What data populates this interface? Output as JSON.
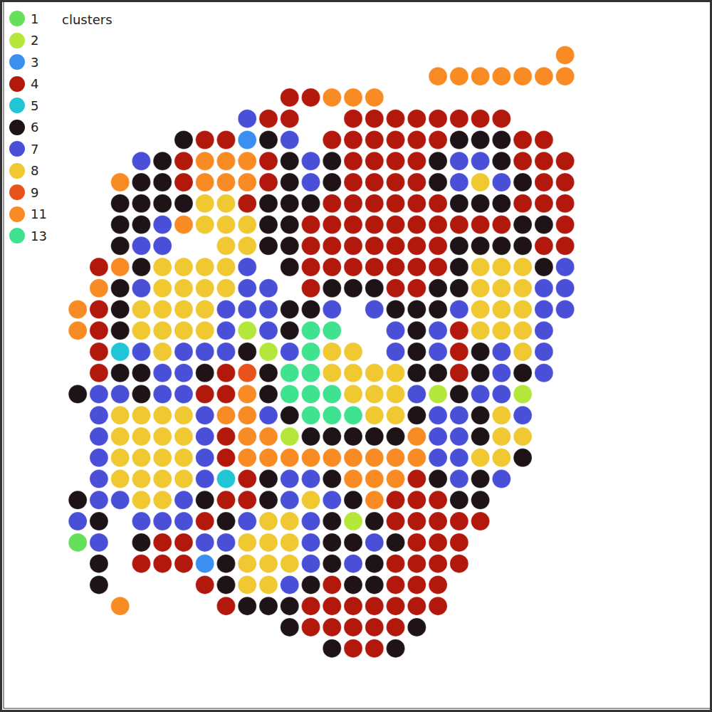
{
  "chart_data": {
    "type": "scatter",
    "legend_title": "clusters",
    "legend": "upper left",
    "tick_labels": false,
    "xlim": [
      0,
      1000
    ],
    "ylim": [
      0,
      1000
    ],
    "series": [
      {
        "name": "1",
        "color": "#66e05a"
      },
      {
        "name": "2",
        "color": "#b5e63a"
      },
      {
        "name": "3",
        "color": "#3a8ff0"
      },
      {
        "name": "4",
        "color": "#b3180c"
      },
      {
        "name": "5",
        "color": "#22c5d6"
      },
      {
        "name": "6",
        "color": "#1e1418"
      },
      {
        "name": "7",
        "color": "#4a4fd8"
      },
      {
        "name": "8",
        "color": "#f0c832"
      },
      {
        "name": "9",
        "color": "#e8521c"
      },
      {
        "name": "11",
        "color": "#f98b24"
      },
      {
        "name": "13",
        "color": "#3ee28f"
      }
    ],
    "x": [
      105,
      135,
      165,
      195,
      225,
      255,
      285,
      315,
      345,
      375,
      405,
      435,
      465,
      495,
      525,
      555,
      585,
      615,
      645,
      675,
      705,
      735,
      765,
      795
    ],
    "y": [
      75,
      105,
      135,
      165,
      195,
      225,
      255,
      285,
      315,
      345,
      375,
      405,
      435,
      465,
      495,
      525,
      555,
      585,
      615,
      645,
      675,
      705,
      735,
      765,
      795,
      825,
      855,
      885,
      915
    ],
    "cells": [
      [
        null,
        null,
        null,
        null,
        null,
        null,
        null,
        null,
        null,
        null,
        null,
        null,
        null,
        null,
        null,
        null,
        null,
        null,
        null,
        null,
        null,
        null,
        null,
        11
      ],
      [
        null,
        null,
        null,
        null,
        null,
        null,
        null,
        null,
        null,
        null,
        null,
        null,
        null,
        null,
        null,
        null,
        null,
        11,
        11,
        11,
        11,
        11,
        11,
        11
      ],
      [
        null,
        null,
        null,
        null,
        null,
        null,
        null,
        null,
        null,
        null,
        4,
        4,
        11,
        11,
        11,
        null,
        null,
        null,
        null,
        null,
        null,
        null,
        null,
        null
      ],
      [
        null,
        null,
        null,
        null,
        null,
        null,
        null,
        null,
        7,
        4,
        4,
        null,
        null,
        4,
        4,
        4,
        4,
        4,
        4,
        4,
        4,
        null,
        null,
        null
      ],
      [
        null,
        null,
        null,
        null,
        null,
        6,
        4,
        4,
        3,
        6,
        7,
        null,
        4,
        4,
        4,
        4,
        4,
        4,
        6,
        6,
        6,
        4,
        4,
        null
      ],
      [
        null,
        null,
        null,
        7,
        6,
        4,
        11,
        11,
        11,
        4,
        6,
        7,
        6,
        4,
        4,
        4,
        4,
        6,
        7,
        7,
        6,
        4,
        4,
        4
      ],
      [
        null,
        null,
        11,
        6,
        6,
        4,
        11,
        11,
        11,
        4,
        6,
        7,
        6,
        4,
        4,
        4,
        4,
        6,
        7,
        8,
        7,
        6,
        4,
        4
      ],
      [
        null,
        null,
        6,
        6,
        6,
        6,
        8,
        8,
        4,
        6,
        6,
        6,
        4,
        4,
        4,
        4,
        4,
        4,
        6,
        6,
        6,
        4,
        4,
        4
      ],
      [
        null,
        null,
        6,
        6,
        7,
        11,
        8,
        8,
        8,
        6,
        6,
        4,
        4,
        4,
        4,
        4,
        4,
        4,
        4,
        4,
        4,
        6,
        6,
        4
      ],
      [
        null,
        null,
        6,
        7,
        7,
        null,
        null,
        8,
        8,
        6,
        6,
        4,
        4,
        4,
        4,
        4,
        4,
        4,
        6,
        6,
        6,
        6,
        4,
        4
      ],
      [
        null,
        4,
        11,
        6,
        8,
        8,
        8,
        8,
        7,
        null,
        6,
        4,
        4,
        4,
        4,
        4,
        4,
        4,
        6,
        8,
        8,
        8,
        6,
        7
      ],
      [
        null,
        11,
        6,
        7,
        8,
        8,
        8,
        8,
        7,
        7,
        null,
        4,
        6,
        6,
        6,
        4,
        4,
        6,
        6,
        8,
        8,
        8,
        7,
        7
      ],
      [
        11,
        4,
        6,
        8,
        8,
        8,
        8,
        7,
        7,
        7,
        6,
        6,
        7,
        null,
        7,
        6,
        6,
        6,
        7,
        8,
        8,
        8,
        7,
        7
      ],
      [
        11,
        4,
        6,
        8,
        8,
        8,
        8,
        7,
        2,
        7,
        6,
        13,
        13,
        null,
        null,
        7,
        6,
        7,
        4,
        8,
        8,
        8,
        7,
        null
      ],
      [
        null,
        4,
        5,
        7,
        8,
        7,
        7,
        7,
        6,
        2,
        7,
        13,
        8,
        8,
        null,
        7,
        6,
        7,
        4,
        6,
        7,
        8,
        7,
        null
      ],
      [
        null,
        4,
        6,
        6,
        7,
        7,
        6,
        4,
        9,
        6,
        13,
        13,
        8,
        8,
        8,
        8,
        6,
        6,
        4,
        6,
        7,
        6,
        7,
        null
      ],
      [
        6,
        7,
        7,
        6,
        7,
        7,
        4,
        4,
        11,
        6,
        13,
        13,
        13,
        8,
        8,
        8,
        7,
        2,
        6,
        7,
        7,
        2,
        null,
        null
      ],
      [
        null,
        7,
        8,
        8,
        8,
        8,
        7,
        11,
        11,
        7,
        6,
        13,
        13,
        13,
        8,
        8,
        6,
        7,
        7,
        6,
        8,
        7,
        null,
        null
      ],
      [
        null,
        7,
        8,
        8,
        8,
        8,
        7,
        4,
        11,
        11,
        2,
        6,
        6,
        6,
        6,
        6,
        11,
        7,
        7,
        6,
        8,
        8,
        null,
        null
      ],
      [
        null,
        7,
        8,
        8,
        8,
        8,
        7,
        4,
        11,
        11,
        11,
        11,
        11,
        11,
        11,
        11,
        11,
        7,
        7,
        8,
        8,
        6,
        null,
        null
      ],
      [
        null,
        7,
        8,
        8,
        8,
        8,
        7,
        5,
        4,
        6,
        7,
        7,
        6,
        11,
        11,
        11,
        4,
        6,
        7,
        6,
        7,
        null,
        null,
        null
      ],
      [
        6,
        7,
        7,
        8,
        8,
        7,
        6,
        4,
        4,
        6,
        7,
        8,
        7,
        6,
        11,
        4,
        4,
        4,
        6,
        6,
        null,
        null,
        null,
        null
      ],
      [
        7,
        6,
        null,
        7,
        7,
        7,
        4,
        6,
        7,
        8,
        8,
        7,
        6,
        2,
        6,
        4,
        4,
        4,
        4,
        4,
        null,
        null,
        null,
        null
      ],
      [
        1,
        7,
        null,
        6,
        4,
        4,
        7,
        7,
        8,
        8,
        8,
        7,
        6,
        6,
        7,
        6,
        4,
        4,
        4,
        null,
        null,
        null,
        null,
        null
      ],
      [
        null,
        6,
        null,
        4,
        4,
        4,
        3,
        6,
        8,
        8,
        8,
        7,
        6,
        7,
        6,
        4,
        4,
        4,
        4,
        null,
        null,
        null,
        null,
        null
      ],
      [
        null,
        6,
        null,
        null,
        null,
        null,
        4,
        6,
        8,
        8,
        7,
        6,
        4,
        6,
        6,
        4,
        4,
        4,
        null,
        null,
        null,
        null,
        null,
        null
      ],
      [
        null,
        null,
        11,
        null,
        null,
        null,
        null,
        4,
        6,
        6,
        6,
        4,
        4,
        4,
        4,
        4,
        4,
        4,
        null,
        null,
        null,
        null,
        null,
        null
      ],
      [
        null,
        null,
        null,
        null,
        null,
        null,
        null,
        null,
        null,
        null,
        6,
        4,
        4,
        4,
        4,
        4,
        6,
        null,
        null,
        null,
        null,
        null,
        null,
        null
      ],
      [
        null,
        null,
        null,
        null,
        null,
        null,
        null,
        null,
        null,
        null,
        null,
        null,
        6,
        4,
        4,
        6,
        null,
        null,
        null,
        null,
        null,
        null,
        null,
        null
      ]
    ]
  }
}
